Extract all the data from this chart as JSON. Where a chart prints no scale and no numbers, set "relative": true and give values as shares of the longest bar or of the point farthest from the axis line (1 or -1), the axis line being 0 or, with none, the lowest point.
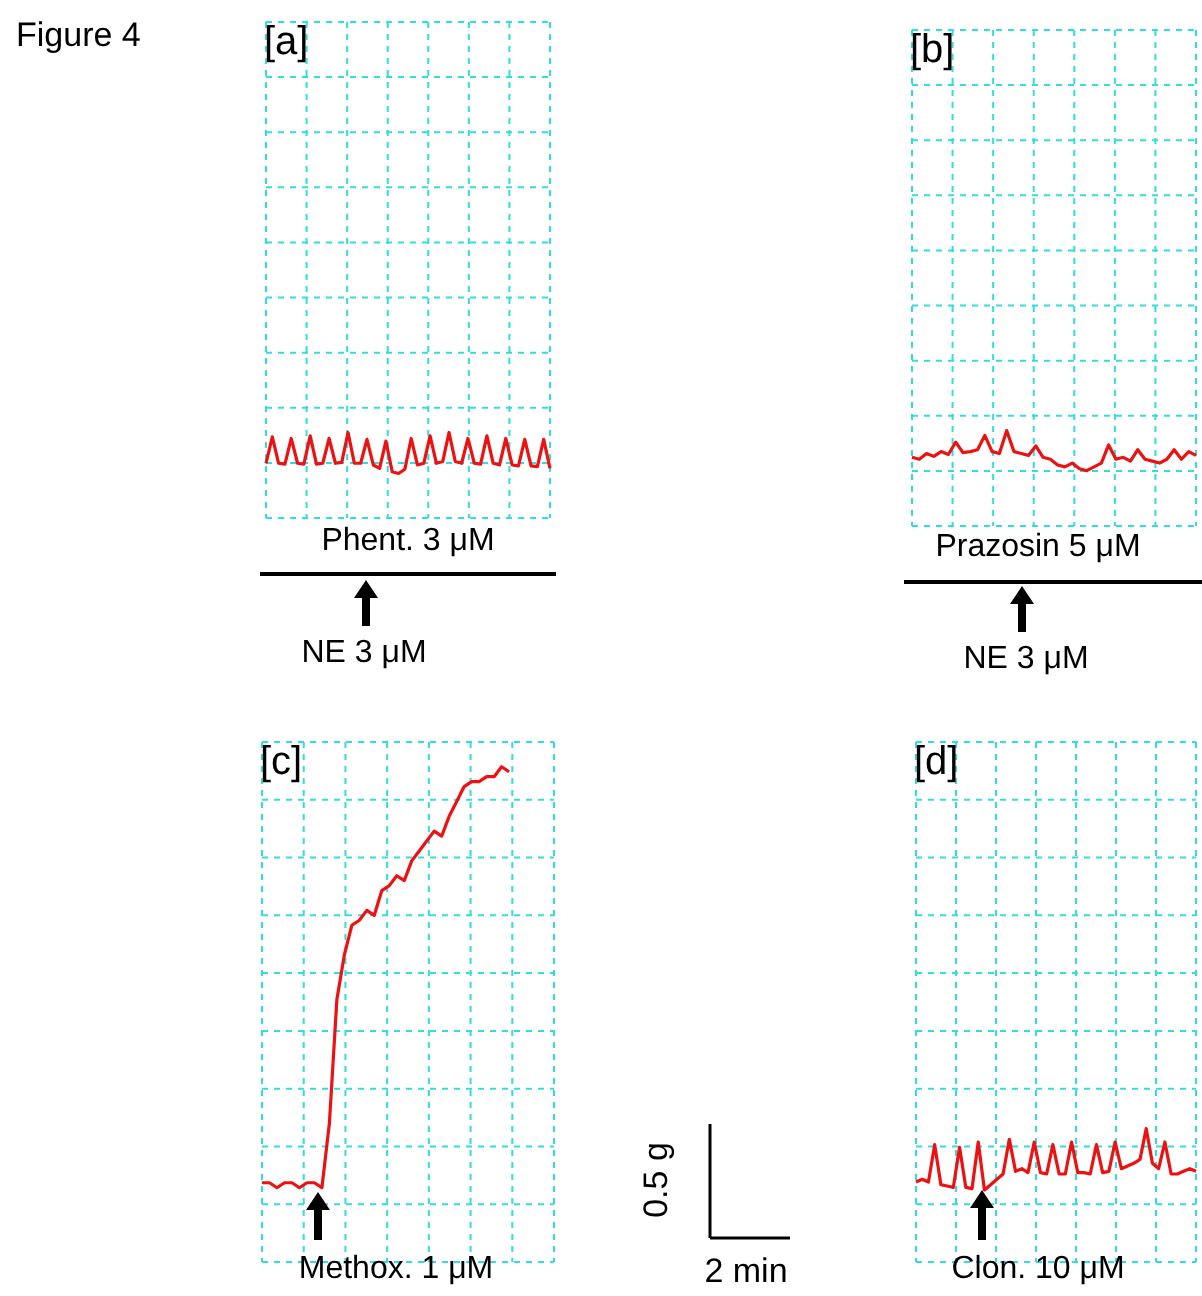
{
  "chart_data": [
    {
      "type": "line",
      "title": "[a]",
      "relative": true,
      "grid": true,
      "categories": [
        null,
        null,
        null,
        null,
        null,
        null,
        null,
        null,
        null,
        null,
        null,
        null,
        null,
        null,
        null,
        null,
        null,
        null,
        null,
        null,
        null,
        null,
        null,
        null,
        null,
        null,
        null,
        null,
        null,
        null,
        null,
        null,
        null,
        null,
        null,
        null,
        null,
        null,
        null,
        null,
        null,
        null,
        null,
        null,
        null,
        null
      ],
      "series": [
        {
          "color": "#ee1111",
          "values": [
            0.64,
            0.95,
            0.64,
            0.63,
            0.93,
            0.64,
            0.63,
            0.96,
            0.63,
            0.64,
            0.93,
            0.64,
            0.65,
            1,
            0.64,
            0.64,
            0.92,
            0.62,
            0.58,
            0.9,
            0.54,
            0.52,
            0.57,
            0.93,
            0.62,
            0.64,
            0.96,
            0.64,
            0.66,
            1,
            0.66,
            0.64,
            0.93,
            0.64,
            0.63,
            0.96,
            0.64,
            0.62,
            0.93,
            0.62,
            0.61,
            0.92,
            0.61,
            0.6,
            0.92,
            0.58
          ]
        }
      ],
      "annotations": [
        "Figure 4",
        "Phent. 3 μM",
        "NE 3 μM"
      ]
    },
    {
      "type": "line",
      "title": "[b]",
      "relative": true,
      "grid": true,
      "categories": [
        null,
        null,
        null,
        null,
        null,
        null,
        null,
        null,
        null,
        null,
        null,
        null,
        null,
        null,
        null,
        null,
        null,
        null,
        null,
        null,
        null,
        null,
        null,
        null,
        null,
        null,
        null,
        null,
        null,
        null,
        null,
        null,
        null,
        null,
        null,
        null,
        null,
        null,
        null,
        null
      ],
      "series": [
        {
          "color": "#ee1111",
          "values": [
            0.72,
            0.7,
            0.76,
            0.73,
            0.78,
            0.75,
            0.88,
            0.77,
            0.78,
            0.8,
            0.95,
            0.78,
            0.76,
            1,
            0.78,
            0.76,
            0.74,
            0.84,
            0.72,
            0.7,
            0.64,
            0.62,
            0.66,
            0.6,
            0.58,
            0.62,
            0.66,
            0.85,
            0.7,
            0.72,
            0.68,
            0.8,
            0.7,
            0.68,
            0.66,
            0.7,
            0.8,
            0.7,
            0.78,
            0.74
          ]
        }
      ],
      "annotations": [
        "Prazosin 5 μM",
        "NE 3 μM"
      ]
    },
    {
      "type": "line",
      "title": "[c]",
      "relative": true,
      "grid": true,
      "categories": [
        null,
        null,
        null,
        null,
        null,
        null,
        null,
        null,
        null,
        null,
        null,
        null,
        null,
        null,
        null,
        null,
        null,
        null,
        null,
        null,
        null,
        null,
        null,
        null,
        null,
        null,
        null,
        null,
        null,
        null,
        null,
        null,
        null,
        null,
        null,
        null,
        null,
        null,
        null,
        null
      ],
      "series": [
        {
          "color": "#ee1111",
          "values": [
            0.16,
            0.16,
            0.15,
            0.16,
            0.16,
            0.15,
            0.16,
            0.16,
            0.15,
            0.28,
            0.53,
            0.62,
            0.68,
            0.69,
            0.71,
            0.7,
            0.75,
            0.76,
            0.78,
            0.77,
            0.81,
            0.83,
            0.85,
            0.87,
            0.86,
            0.9,
            0.93,
            0.96,
            0.97,
            0.97,
            0.98,
            0.98,
            1,
            0.99,
            null,
            null,
            null,
            null,
            null,
            null
          ]
        }
      ],
      "annotations": [
        "Methox. 1 μM",
        "0.5 g",
        "2 min"
      ]
    },
    {
      "type": "line",
      "title": "[d]",
      "relative": true,
      "grid": true,
      "categories": [
        null,
        null,
        null,
        null,
        null,
        null,
        null,
        null,
        null,
        null,
        null,
        null,
        null,
        null,
        null,
        null,
        null,
        null,
        null,
        null,
        null,
        null,
        null,
        null,
        null,
        null,
        null,
        null,
        null,
        null,
        null,
        null,
        null,
        null,
        null,
        null,
        null,
        null,
        null,
        null,
        null,
        null,
        null,
        null,
        null,
        null
      ],
      "series": [
        {
          "color": "#ee1111",
          "values": [
            0.6,
            0.62,
            0.6,
            0.88,
            0.58,
            0.57,
            0.56,
            0.86,
            0.56,
            0.55,
            0.9,
            0.54,
            0.58,
            0.62,
            0.66,
            0.92,
            0.68,
            0.7,
            0.67,
            0.9,
            0.67,
            0.66,
            0.88,
            0.66,
            0.66,
            0.9,
            0.67,
            0.67,
            0.66,
            0.88,
            0.67,
            0.68,
            0.9,
            0.7,
            0.72,
            0.74,
            0.77,
            1,
            0.74,
            0.7,
            0.9,
            0.66,
            0.66,
            0.68,
            0.7,
            0.68
          ]
        }
      ],
      "annotations": [
        "Clon. 10 μM"
      ]
    }
  ]
}
